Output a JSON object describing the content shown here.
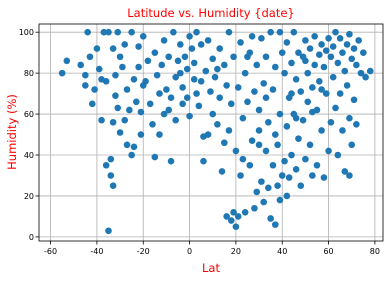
{
  "chart_data": {
    "type": "scatter",
    "title": "Latitude vs. Humidity {date}",
    "x_label": "Lat",
    "y_label": "Humidity (%)",
    "color": "#1f77b4",
    "title_color": "#ff0000",
    "grid": true,
    "xlim": [
      -65,
      83.5
    ],
    "ylim": [
      -2,
      104
    ],
    "xticks": [
      -60,
      -40,
      -20,
      0,
      20,
      40,
      60,
      80
    ],
    "yticks": [
      0,
      20,
      40,
      60,
      80,
      100
    ],
    "x": [
      -55,
      -53,
      -47,
      -45,
      -44,
      -43,
      -42,
      -41,
      -40,
      -39,
      -38,
      -37,
      -36,
      -35,
      -35,
      -34,
      -34,
      -33,
      -33,
      -33,
      -32,
      -31,
      -31,
      -30,
      -29,
      -28,
      -28,
      -27,
      -26,
      -25,
      -25,
      -24,
      -24,
      -23,
      -22,
      -22,
      -21,
      -21,
      -20,
      -20,
      -36,
      -38,
      -45,
      -30,
      -27,
      -32,
      -18,
      -17,
      -16,
      -15,
      -15,
      -14,
      -13,
      -12,
      -11,
      -11,
      -10,
      -9,
      -8,
      -8,
      -7,
      -6,
      -6,
      -5,
      -4,
      -3,
      -3,
      -2,
      -1,
      0,
      0,
      -19,
      -13,
      -9,
      -4,
      -1,
      1,
      2,
      3,
      3,
      4,
      5,
      5,
      6,
      6,
      7,
      8,
      9,
      10,
      10,
      11,
      12,
      13,
      13,
      14,
      15,
      16,
      16,
      17,
      17,
      18,
      18,
      19,
      19,
      20,
      20,
      21,
      21,
      2,
      8,
      12,
      15,
      22,
      22,
      23,
      24,
      24,
      25,
      25,
      26,
      27,
      27,
      28,
      28,
      29,
      29,
      30,
      30,
      31,
      31,
      32,
      32,
      33,
      33,
      34,
      34,
      35,
      35,
      36,
      36,
      37,
      37,
      38,
      38,
      39,
      39,
      40,
      40,
      23,
      26,
      30,
      33,
      37,
      39,
      41,
      41,
      42,
      42,
      43,
      43,
      44,
      44,
      45,
      45,
      46,
      46,
      47,
      47,
      48,
      48,
      49,
      49,
      50,
      50,
      51,
      51,
      52,
      52,
      53,
      53,
      54,
      54,
      55,
      55,
      56,
      56,
      57,
      57,
      58,
      58,
      59,
      59,
      60,
      60,
      42,
      44,
      46,
      50,
      53,
      57,
      61,
      61,
      62,
      62,
      63,
      63,
      64,
      64,
      65,
      65,
      66,
      66,
      67,
      67,
      68,
      68,
      69,
      69,
      70,
      70,
      71,
      71,
      72,
      72,
      73,
      74,
      76,
      78,
      75,
      69
    ],
    "values": [
      80,
      86,
      84,
      74,
      100,
      88,
      65,
      72,
      92,
      82,
      57,
      100,
      76,
      100,
      3,
      30,
      38,
      25,
      56,
      92,
      79,
      100,
      63,
      88,
      83,
      94,
      57,
      72,
      62,
      100,
      40,
      44,
      77,
      66,
      93,
      83,
      61,
      50,
      98,
      74,
      35,
      77,
      79,
      51,
      45,
      69,
      86,
      65,
      55,
      90,
      39,
      79,
      70,
      84,
      96,
      60,
      72,
      88,
      37,
      68,
      100,
      78,
      57,
      86,
      94,
      73,
      65,
      88,
      82,
      98,
      59,
      76,
      50,
      62,
      80,
      68,
      92,
      85,
      100,
      70,
      64,
      76,
      94,
      49,
      37,
      81,
      96,
      71,
      87,
      60,
      78,
      55,
      68,
      92,
      32,
      84,
      74,
      10,
      100,
      52,
      8,
      65,
      88,
      12,
      5,
      42,
      10,
      73,
      77,
      50,
      82,
      46,
      95,
      30,
      58,
      80,
      12,
      66,
      88,
      35,
      47,
      98,
      14,
      71,
      22,
      84,
      52,
      62,
      27,
      97,
      17,
      75,
      42,
      88,
      24,
      56,
      100,
      9,
      72,
      35,
      6,
      83,
      25,
      45,
      100,
      60,
      30,
      90,
      38,
      90,
      45,
      68,
      50,
      18,
      37,
      80,
      54,
      95,
      29,
      68,
      85,
      40,
      100,
      60,
      33,
      77,
      90,
      48,
      71,
      25,
      88,
      57,
      96,
      38,
      80,
      66,
      92,
      45,
      73,
      30,
      98,
      84,
      62,
      35,
      89,
      76,
      94,
      52,
      83,
      29,
      91,
      70,
      97,
      42,
      20,
      70,
      58,
      86,
      61,
      72,
      88,
      56,
      93,
      78,
      100,
      63,
      85,
      40,
      97,
      70,
      90,
      52,
      81,
      32,
      94,
      74,
      99,
      58,
      87,
      45,
      92,
      67,
      55,
      84,
      96,
      80,
      78,
      81,
      90,
      30
    ]
  }
}
